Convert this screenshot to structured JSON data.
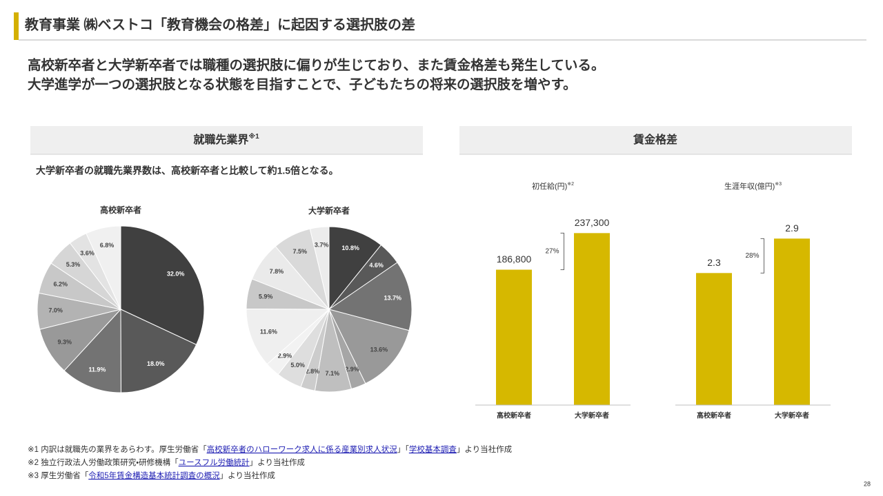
{
  "header": {
    "title": "教育事業 ㈱ベストコ「教育機会の格差」に起因する選択肢の差"
  },
  "lead": [
    "高校新卒者と大学新卒者では職種の選択肢に偏りが生じており、また賃金格差も発生している。",
    "大学進学が一つの選択肢となる状態を目指すことで、子どもたちの将来の選択肢を増やす。"
  ],
  "panels": [
    {
      "title": "就職先業界",
      "note": "※1",
      "summary": "大学新卒者の就職先業界数は、高校新卒者と比較して約1.5倍となる。"
    },
    {
      "title": "賃金格差"
    }
  ],
  "chart_data": [
    {
      "type": "pie",
      "title": "高校新卒者",
      "values": [
        32.0,
        18.0,
        11.9,
        9.3,
        7.0,
        6.2,
        5.3,
        3.6,
        6.8
      ],
      "value_labels": [
        "32.0%",
        "18.0%",
        "11.9%",
        "9.3%",
        "7.0%",
        "6.2%",
        "5.3%",
        "3.6%",
        "6.8%"
      ],
      "colors": [
        "#404040",
        "#595959",
        "#737373",
        "#999999",
        "#b3b3b3",
        "#c8c8c8",
        "#d6d6d6",
        "#e3e3e3",
        "#f0f0f0"
      ]
    },
    {
      "type": "pie",
      "title": "大学新卒者",
      "values": [
        10.8,
        4.6,
        13.7,
        13.6,
        2.9,
        7.1,
        2.8,
        5.0,
        2.9,
        11.6,
        5.9,
        7.8,
        7.5,
        3.7
      ],
      "value_labels": [
        "10.8%",
        "4.6%",
        "13.7%",
        "13.6%",
        "2.9%",
        "7.1%",
        "2.8%",
        "5.0%",
        "2.9%",
        "11.6%",
        "5.9%",
        "7.8%",
        "7.5%",
        "3.7%"
      ],
      "colors": [
        "#404040",
        "#595959",
        "#737373",
        "#999999",
        "#a6a6a6",
        "#bfbfbf",
        "#cccccc",
        "#dedede",
        "#f2f2f2",
        "#efefef",
        "#c8c8c8",
        "#eaeaea",
        "#d9d9d9",
        "#ececec"
      ]
    },
    {
      "type": "bar",
      "title": "初任給(円)",
      "title_note": "※2",
      "categories": [
        "高校新卒者",
        "大学新卒者"
      ],
      "values": [
        186800,
        237300
      ],
      "value_labels": [
        "186,800",
        "237,300"
      ],
      "color": "#d6b800",
      "ylim": [
        0,
        250000
      ],
      "annotation": "27%"
    },
    {
      "type": "bar",
      "title": "生涯年収(億円)",
      "title_note": "※3",
      "categories": [
        "高校新卒者",
        "大学新卒者"
      ],
      "values": [
        2.3,
        2.9
      ],
      "color": "#d6b800",
      "ylim": [
        0,
        3
      ],
      "annotation": "28%"
    }
  ],
  "footnotes": [
    {
      "segments": [
        "※1 内訳は就職先の業界をあらわす。厚生労働省「",
        "高校新卒者のハローワーク求人に係る産業別求人状況",
        "」「",
        "学校基本調査",
        "」より当社作成"
      ]
    },
    {
      "segments": [
        "※2 独立行政法人労働政策研究・研修機構「",
        "ユースフル労働統計",
        "」より当社作成"
      ]
    },
    {
      "segments": [
        "※3 厚生労働省「",
        "令和5年賃金構造基本統計調査の概況",
        "」より当社作成"
      ]
    }
  ],
  "page_number": "28"
}
